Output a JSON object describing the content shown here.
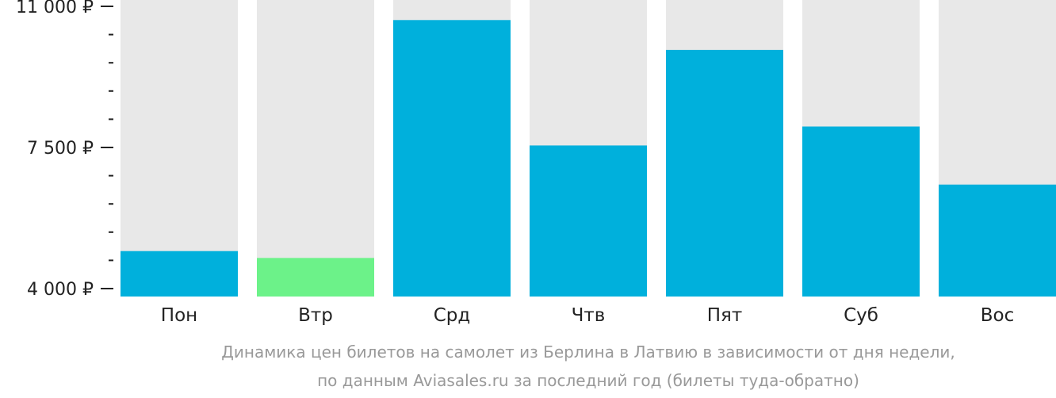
{
  "chart_data": {
    "type": "bar",
    "categories": [
      "Пон",
      "Втр",
      "Срд",
      "Чтв",
      "Пят",
      "Суб",
      "Вос"
    ],
    "values": [
      4930,
      4760,
      10660,
      7550,
      9920,
      8020,
      6580
    ],
    "highlight_index": 1,
    "ylim": [
      4000,
      11000
    ],
    "y_major_ticks": [
      {
        "value": 4000,
        "label": "4 000 ₽"
      },
      {
        "value": 7500,
        "label": "7 500 ₽"
      },
      {
        "value": 11000,
        "label": "11 000 ₽"
      }
    ],
    "y_minor_ticks": [
      4700,
      5400,
      6100,
      6800,
      8200,
      8900,
      9600,
      10300
    ],
    "caption_line1": "Динамика цен билетов на самолет из Берлина в Латвию в зависимости от дня недели,",
    "caption_line2": "по данным Aviasales.ru за последний год (билеты туда-обратно)",
    "colors": {
      "bar": "#00b0dc",
      "highlight": "#6cf289",
      "background_bar": "#e8e8e8",
      "axis": "#222222",
      "caption": "#999999"
    }
  }
}
